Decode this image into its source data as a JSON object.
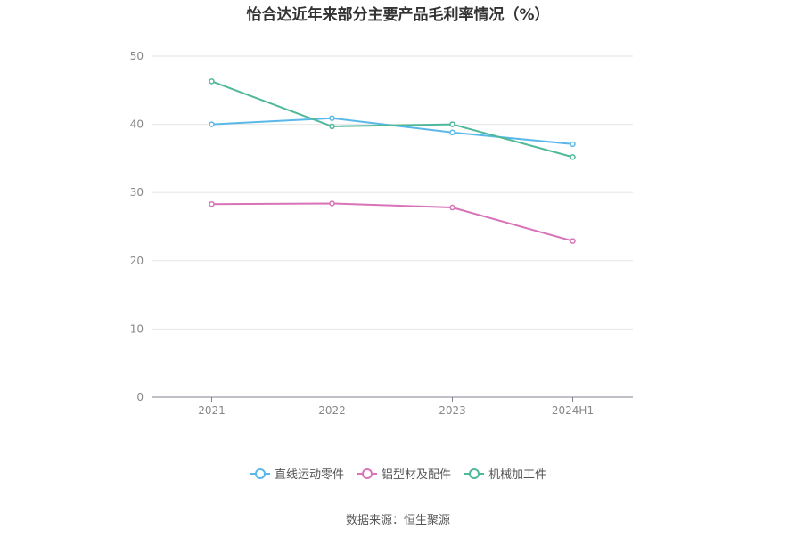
{
  "chart_data": {
    "type": "line",
    "title": "怡合达近年来部分主要产品毛利率情况（%）",
    "categories": [
      "2021",
      "2022",
      "2023",
      "2024H1"
    ],
    "ylim": [
      0,
      50
    ],
    "yticks": [
      0,
      10,
      20,
      30,
      40,
      50
    ],
    "grid": true,
    "legend_position": "bottom",
    "series": [
      {
        "name": "直线运动零件",
        "color": "#5ab8e8",
        "values": [
          40.0,
          40.9,
          38.8,
          37.1
        ]
      },
      {
        "name": "铝型材及配件",
        "color": "#d973b8",
        "values": [
          28.3,
          28.4,
          27.8,
          22.9
        ]
      },
      {
        "name": "机械加工件",
        "color": "#4fb89a",
        "values": [
          46.3,
          39.7,
          40.0,
          35.2
        ]
      }
    ]
  },
  "source": "数据来源：恒生聚源"
}
